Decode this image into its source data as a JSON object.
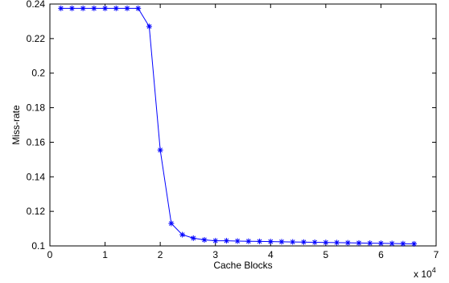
{
  "chart_data": {
    "type": "line",
    "title": "",
    "xlabel": "Cache Blocks",
    "ylabel": "Miss-rate",
    "x_multiplier_label": "x 10",
    "x_multiplier_exponent": "4",
    "xlim": [
      0,
      7
    ],
    "ylim": [
      0.1,
      0.24
    ],
    "x_ticks": [
      0,
      1,
      2,
      3,
      4,
      5,
      6,
      7
    ],
    "y_ticks": [
      0.1,
      0.12,
      0.14,
      0.16,
      0.18,
      0.2,
      0.22,
      0.24
    ],
    "x_tick_labels": [
      "0",
      "1",
      "2",
      "3",
      "4",
      "5",
      "6",
      "7"
    ],
    "y_tick_labels": [
      "0.1",
      "0.12",
      "0.14",
      "0.16",
      "0.18",
      "0.2",
      "0.22",
      "0.24"
    ],
    "grid": false,
    "legend": "none",
    "series_color": "#0000ff",
    "marker": "asterisk",
    "x": [
      0.2,
      0.4,
      0.6,
      0.8,
      1.0,
      1.2,
      1.4,
      1.6,
      1.8,
      2.0,
      2.2,
      2.4,
      2.6,
      2.8,
      3.0,
      3.2,
      3.4,
      3.6,
      3.8,
      4.0,
      4.2,
      4.4,
      4.6,
      4.8,
      5.0,
      5.2,
      5.4,
      5.6,
      5.8,
      6.0,
      6.2,
      6.4,
      6.6
    ],
    "y": [
      0.2375,
      0.2375,
      0.2375,
      0.2375,
      0.2375,
      0.2375,
      0.2375,
      0.2375,
      0.227,
      0.1555,
      0.113,
      0.1065,
      0.1045,
      0.1035,
      0.103,
      0.103,
      0.1028,
      0.1027,
      0.1026,
      0.1025,
      0.1024,
      0.1023,
      0.1022,
      0.1021,
      0.102,
      0.1019,
      0.1018,
      0.1017,
      0.1016,
      0.1015,
      0.1014,
      0.1013,
      0.1012
    ]
  }
}
